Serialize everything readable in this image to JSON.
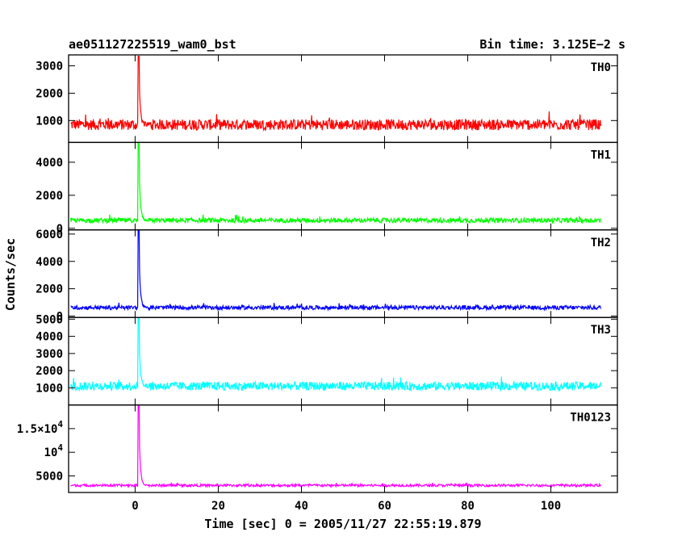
{
  "header": {
    "left_title": "ae051127225519_wam0_bst",
    "right_title": "Bin time: 3.125E−2 s"
  },
  "chart_data": {
    "type": "line",
    "x_axis": {
      "label": "Time [sec] 0 = 2005/11/27 22:55:19.879",
      "range": [
        -16,
        116
      ],
      "ticks": [
        0,
        20,
        40,
        60,
        80,
        100
      ],
      "tick_labels": [
        "0",
        "20",
        "40",
        "60",
        "80",
        "100"
      ]
    },
    "y_axis_label": "Counts/sec",
    "bin_time_s": 0.03125,
    "data_start": -15.5,
    "data_end": 112,
    "burst_time": 0.7,
    "panels": [
      {
        "name": "TH0",
        "color": "#ff0000",
        "ylim": [
          200,
          3400
        ],
        "baseline": 850,
        "noise": 200,
        "peak": 3350,
        "ticks": [
          1000,
          2000,
          3000
        ],
        "tick_labels": [
          "1000",
          "2000",
          "3000"
        ]
      },
      {
        "name": "TH1",
        "color": "#00ff00",
        "ylim": [
          -100,
          5200
        ],
        "baseline": 480,
        "noise": 140,
        "peak": 5200,
        "ticks": [
          0,
          2000,
          4000
        ],
        "tick_labels": [
          "0",
          "2000",
          "4000"
        ]
      },
      {
        "name": "TH2",
        "color": "#0000ff",
        "ylim": [
          -100,
          6300
        ],
        "baseline": 620,
        "noise": 150,
        "peak": 6300,
        "ticks": [
          0,
          2000,
          4000,
          6000
        ],
        "tick_labels": [
          "0",
          "2000",
          "4000",
          "6000"
        ]
      },
      {
        "name": "TH3",
        "color": "#00ffff",
        "ylim": [
          0,
          5100
        ],
        "baseline": 1100,
        "noise": 250,
        "peak": 5100,
        "ticks": [
          1000,
          2000,
          3000,
          4000,
          5000
        ],
        "tick_labels": [
          "1000",
          "2000",
          "3000",
          "4000",
          "5000"
        ]
      },
      {
        "name": "TH0123",
        "color": "#ff00ff",
        "ylim": [
          1500,
          20000
        ],
        "baseline": 3000,
        "noise": 260,
        "peak": 20000,
        "ticks": [
          5000,
          10000,
          15000
        ],
        "tick_labels": [
          "5000",
          "10^4",
          "1.5×10^4"
        ]
      }
    ]
  }
}
